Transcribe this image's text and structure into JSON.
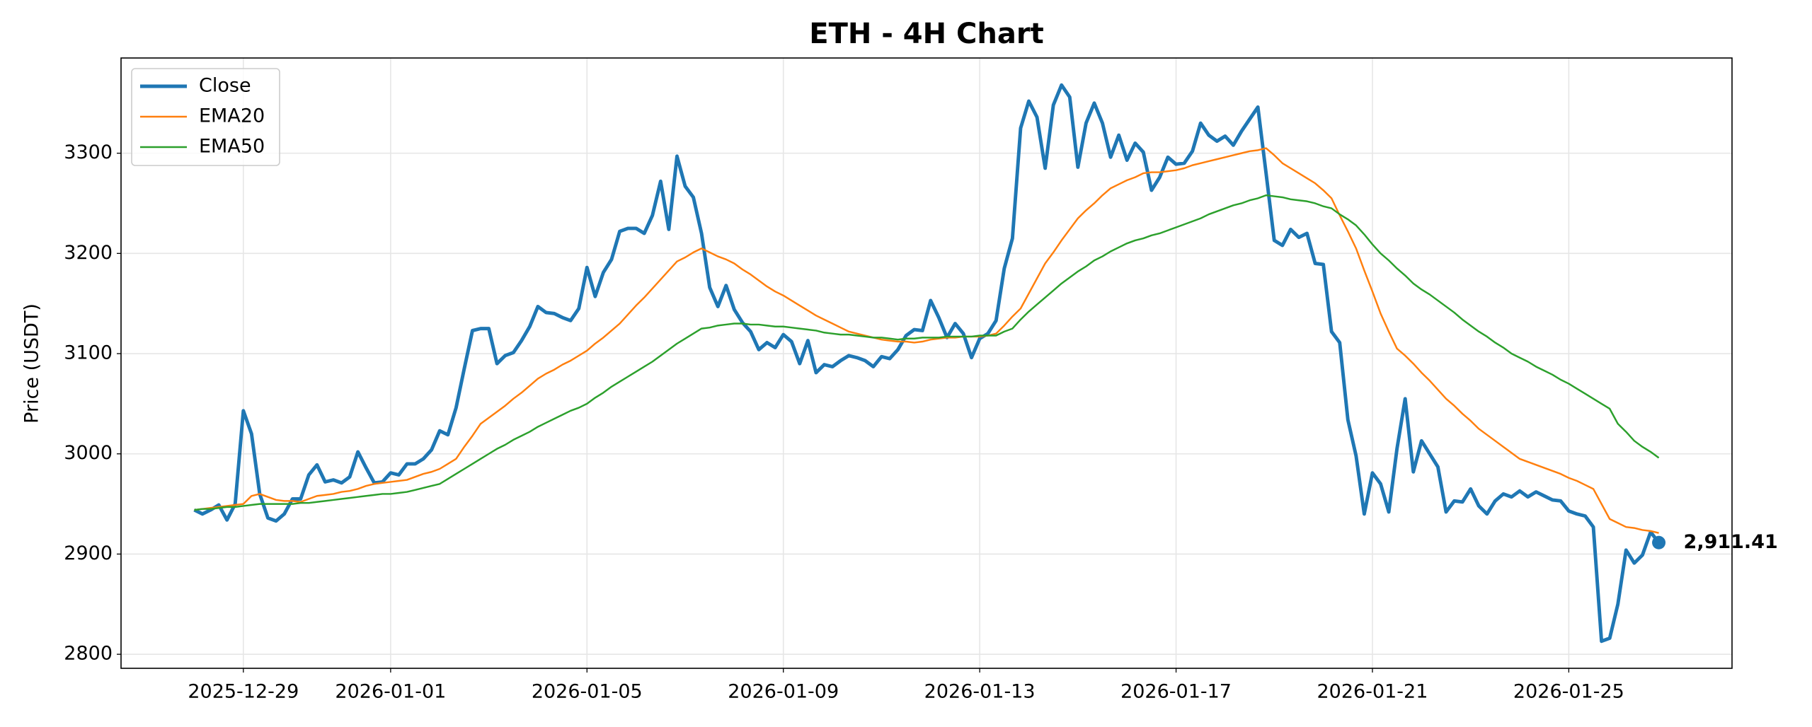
{
  "chart_data": {
    "type": "line",
    "title": "ETH - 4H Chart",
    "y_label": "Price (USDT)",
    "categories": [
      null,
      null,
      null,
      null,
      null,
      null,
      "2025-12-29",
      null,
      null,
      null,
      null,
      null,
      null,
      null,
      null,
      null,
      null,
      null,
      null,
      null,
      null,
      null,
      null,
      null,
      "2026-01-01",
      null,
      null,
      null,
      null,
      null,
      null,
      null,
      null,
      null,
      null,
      null,
      null,
      null,
      null,
      null,
      null,
      null,
      null,
      null,
      null,
      null,
      null,
      null,
      "2026-01-05",
      null,
      null,
      null,
      null,
      null,
      null,
      null,
      null,
      null,
      null,
      null,
      null,
      null,
      null,
      null,
      null,
      null,
      null,
      null,
      null,
      null,
      null,
      null,
      "2026-01-09",
      null,
      null,
      null,
      null,
      null,
      null,
      null,
      null,
      null,
      null,
      null,
      null,
      null,
      null,
      null,
      null,
      null,
      null,
      null,
      null,
      null,
      null,
      null,
      "2026-01-13",
      null,
      null,
      null,
      null,
      null,
      null,
      null,
      null,
      null,
      null,
      null,
      null,
      null,
      null,
      null,
      null,
      null,
      null,
      null,
      null,
      null,
      null,
      null,
      "2026-01-17",
      null,
      null,
      null,
      null,
      null,
      null,
      null,
      null,
      null,
      null,
      null,
      null,
      null,
      null,
      null,
      null,
      null,
      null,
      null,
      null,
      null,
      null,
      null,
      "2026-01-21",
      null,
      null,
      null,
      null,
      null,
      null,
      null,
      null,
      null,
      null,
      null,
      null,
      null,
      null,
      null,
      null,
      null,
      null,
      null,
      null,
      null,
      null,
      null,
      "2026-01-25",
      null,
      null,
      null,
      null,
      null,
      null,
      null,
      null,
      null,
      null,
      null
    ],
    "series": [
      {
        "name": "Close",
        "color": "#1f77b4",
        "linewidth": 3,
        "values": [
          2944,
          2940,
          2944,
          2949,
          2934,
          2950,
          3043,
          3020,
          2960,
          2936,
          2933,
          2940,
          2955,
          2955,
          2979,
          2989,
          2972,
          2974,
          2971,
          2977,
          3002,
          2986,
          2971,
          2972,
          2981,
          2979,
          2990,
          2990,
          2995,
          3004,
          3023,
          3019,
          3046,
          3085,
          3123,
          3125,
          3125,
          3090,
          3098,
          3101,
          3113,
          3127,
          3147,
          3141,
          3140,
          3136,
          3133,
          3145,
          3186,
          3157,
          3181,
          3194,
          3222,
          3225,
          3225,
          3220,
          3238,
          3272,
          3224,
          3297,
          3267,
          3256,
          3220,
          3166,
          3147,
          3168,
          3144,
          3131,
          3122,
          3104,
          3111,
          3106,
          3119,
          3112,
          3090,
          3113,
          3081,
          3089,
          3087,
          3093,
          3098,
          3096,
          3093,
          3087,
          3097,
          3095,
          3104,
          3118,
          3124,
          3123,
          3153,
          3136,
          3116,
          3130,
          3120,
          3096,
          3115,
          3120,
          3133,
          3185,
          3215,
          3325,
          3352,
          3336,
          3285,
          3348,
          3368,
          3356,
          3286,
          3330,
          3350,
          3330,
          3296,
          3318,
          3293,
          3310,
          3301,
          3263,
          3276,
          3296,
          3289,
          3290,
          3302,
          3330,
          3318,
          3312,
          3317,
          3308,
          3322,
          3334,
          3346,
          3280,
          3213,
          3208,
          3224,
          3216,
          3220,
          3190,
          3189,
          3122,
          3111,
          3034,
          2998,
          2940,
          2981,
          2970,
          2942,
          3005,
          3055,
          2982,
          3013,
          3000,
          2987,
          2942,
          2953,
          2952,
          2965,
          2948,
          2940,
          2953,
          2960,
          2957,
          2963,
          2957,
          2962,
          2958,
          2954,
          2953,
          2943,
          2940,
          2938,
          2927,
          2813,
          2816,
          2850,
          2904,
          2891,
          2899,
          2922,
          2911.41
        ]
      },
      {
        "name": "EMA20",
        "color": "#ff7f0e",
        "linewidth": 1.5,
        "values": [
          2944,
          2945,
          2946,
          2947,
          2948,
          2949,
          2950,
          2958,
          2960,
          2957,
          2954,
          2953,
          2953,
          2952,
          2955,
          2958,
          2959,
          2960,
          2962,
          2963,
          2965,
          2968,
          2970,
          2971,
          2972,
          2973,
          2974,
          2977,
          2980,
          2982,
          2985,
          2990,
          2995,
          3007,
          3018,
          3030,
          3036,
          3042,
          3048,
          3055,
          3061,
          3068,
          3075,
          3080,
          3084,
          3089,
          3093,
          3098,
          3103,
          3110,
          3116,
          3123,
          3130,
          3139,
          3148,
          3156,
          3165,
          3174,
          3183,
          3192,
          3196,
          3201,
          3205,
          3201,
          3197,
          3194,
          3190,
          3184,
          3179,
          3173,
          3167,
          3162,
          3158,
          3153,
          3148,
          3143,
          3138,
          3134,
          3130,
          3126,
          3122,
          3120,
          3118,
          3116,
          3114,
          3113,
          3112,
          3112,
          3111,
          3112,
          3114,
          3115,
          3116,
          3116,
          3117,
          3117,
          3117,
          3118,
          3120,
          3128,
          3137,
          3145,
          3160,
          3175,
          3190,
          3201,
          3213,
          3224,
          3235,
          3243,
          3250,
          3258,
          3265,
          3269,
          3273,
          3276,
          3280,
          3281,
          3281,
          3282,
          3283,
          3285,
          3288,
          3290,
          3292,
          3294,
          3296,
          3298,
          3300,
          3302,
          3303,
          3305,
          3298,
          3290,
          3285,
          3280,
          3275,
          3270,
          3263,
          3255,
          3238,
          3222,
          3205,
          3183,
          3162,
          3140,
          3122,
          3105,
          3098,
          3090,
          3081,
          3073,
          3064,
          3055,
          3048,
          3040,
          3033,
          3025,
          3019,
          3013,
          3007,
          3001,
          2995,
          2992,
          2989,
          2986,
          2983,
          2980,
          2976,
          2973,
          2969,
          2965,
          2950,
          2935,
          2931,
          2927,
          2926,
          2924,
          2923,
          2921
        ]
      },
      {
        "name": "EMA50",
        "color": "#2ca02c",
        "linewidth": 1.5,
        "values": [
          2944,
          2945,
          2945,
          2946,
          2947,
          2947,
          2948,
          2949,
          2950,
          2950,
          2950,
          2950,
          2950,
          2951,
          2951,
          2952,
          2953,
          2954,
          2955,
          2956,
          2957,
          2958,
          2959,
          2960,
          2960,
          2961,
          2962,
          2964,
          2966,
          2968,
          2970,
          2975,
          2980,
          2985,
          2990,
          2995,
          3000,
          3005,
          3009,
          3014,
          3018,
          3022,
          3027,
          3031,
          3035,
          3039,
          3043,
          3046,
          3050,
          3056,
          3061,
          3067,
          3072,
          3077,
          3082,
          3087,
          3092,
          3098,
          3104,
          3110,
          3115,
          3120,
          3125,
          3126,
          3128,
          3129,
          3130,
          3130,
          3129,
          3129,
          3128,
          3127,
          3127,
          3126,
          3125,
          3124,
          3123,
          3121,
          3120,
          3119,
          3119,
          3118,
          3117,
          3116,
          3116,
          3115,
          3114,
          3115,
          3115,
          3116,
          3116,
          3116,
          3117,
          3117,
          3117,
          3117,
          3118,
          3118,
          3118,
          3122,
          3125,
          3134,
          3142,
          3149,
          3156,
          3163,
          3170,
          3176,
          3182,
          3187,
          3193,
          3197,
          3202,
          3206,
          3210,
          3213,
          3215,
          3218,
          3220,
          3223,
          3226,
          3229,
          3232,
          3235,
          3239,
          3242,
          3245,
          3248,
          3250,
          3253,
          3255,
          3258,
          3257,
          3256,
          3254,
          3253,
          3252,
          3250,
          3247,
          3245,
          3239,
          3234,
          3228,
          3219,
          3209,
          3200,
          3193,
          3185,
          3178,
          3170,
          3164,
          3159,
          3153,
          3147,
          3141,
          3134,
          3128,
          3122,
          3117,
          3111,
          3106,
          3100,
          3096,
          3092,
          3087,
          3083,
          3079,
          3074,
          3070,
          3065,
          3060,
          3055,
          3050,
          3045,
          3030,
          3022,
          3013,
          3007,
          3002,
          2996
        ]
      }
    ],
    "annotation": "2,911.41",
    "ylim": [
      2786,
      3395
    ],
    "yticks": [
      2800,
      2900,
      3000,
      3100,
      3200,
      3300
    ],
    "grid": true,
    "legend": "upper left"
  }
}
